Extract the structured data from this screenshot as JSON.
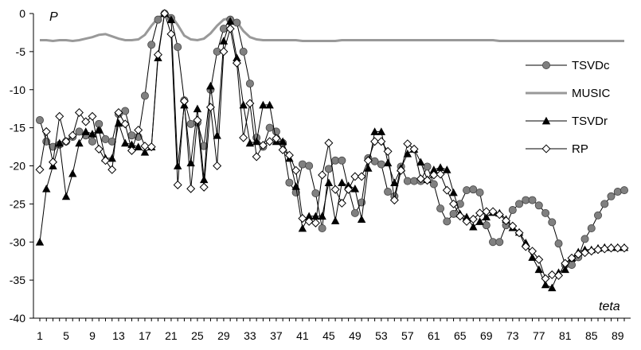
{
  "chart_data": {
    "type": "line",
    "title": "",
    "ylabel": "P",
    "xlabel": "teta",
    "ylim": [
      -40,
      0
    ],
    "yticks": [
      0,
      -5,
      -10,
      -15,
      -20,
      -25,
      -30,
      -35,
      -40
    ],
    "xlim": [
      1,
      90
    ],
    "xticks": [
      1,
      5,
      9,
      13,
      17,
      21,
      25,
      29,
      33,
      37,
      41,
      45,
      49,
      53,
      57,
      61,
      65,
      69,
      73,
      77,
      81,
      85,
      89
    ],
    "grid": false,
    "legend_position": "right",
    "x": [
      1,
      2,
      3,
      4,
      5,
      6,
      7,
      8,
      9,
      10,
      11,
      12,
      13,
      14,
      15,
      16,
      17,
      18,
      19,
      20,
      21,
      22,
      23,
      24,
      25,
      26,
      27,
      28,
      29,
      30,
      31,
      32,
      33,
      34,
      35,
      36,
      37,
      38,
      39,
      40,
      41,
      42,
      43,
      44,
      45,
      46,
      47,
      48,
      49,
      50,
      51,
      52,
      53,
      54,
      55,
      56,
      57,
      58,
      59,
      60,
      61,
      62,
      63,
      64,
      65,
      66,
      67,
      68,
      69,
      70,
      71,
      72,
      73,
      74,
      75,
      76,
      77,
      78,
      79,
      80,
      81,
      82,
      83,
      84,
      85,
      86,
      87,
      88,
      89,
      90
    ],
    "series": [
      {
        "name": "TSVDc",
        "color": "#808080",
        "marker": "circle",
        "values": [
          -14,
          -16.8,
          -17.5,
          -17.2,
          -16.8,
          -16.2,
          -15.5,
          -16,
          -16.8,
          -14.5,
          -16.5,
          -16.8,
          -13.2,
          -12.8,
          -16,
          -16.2,
          -10.8,
          -4.1,
          -0.8,
          0,
          -0.6,
          -4.4,
          -11.4,
          -14.5,
          -14.3,
          -17.4,
          -10,
          -5,
          -2,
          -0.8,
          -1.2,
          -5,
          -9.2,
          -16.3,
          -17.5,
          -15,
          -15.5,
          -17,
          -22.2,
          -23.5,
          -19.8,
          -20,
          -23.6,
          -28.2,
          -20.4,
          -19.3,
          -19.3,
          -23,
          -26.2,
          -24.8,
          -19,
          -19.4,
          -19.8,
          -23.4,
          -24,
          -20.1,
          -22,
          -22,
          -22,
          -20.1,
          -22.4,
          -25.6,
          -27.3,
          -26.3,
          -25,
          -23.2,
          -23.1,
          -23.5,
          -27.8,
          -30,
          -30,
          -27.8,
          -25.8,
          -25,
          -24.5,
          -24.5,
          -25.2,
          -26.2,
          -27.4,
          -30.2,
          -33,
          -33,
          -32,
          -29.6,
          -28.2,
          -26.5,
          -25,
          -24,
          -23.4,
          -23.2
        ]
      },
      {
        "name": "MUSIC",
        "color": "#999999",
        "marker": "none",
        "values": [
          -3.5,
          -3.5,
          -3.6,
          -3.5,
          -3.5,
          -3.6,
          -3.5,
          -3.3,
          -3.1,
          -2.8,
          -2.7,
          -3,
          -3.3,
          -3.5,
          -3.5,
          -3.4,
          -2.8,
          -1.6,
          -0.6,
          0,
          -0.3,
          -1.5,
          -2.9,
          -3.4,
          -3.5,
          -3.3,
          -2.6,
          -1.6,
          -0.8,
          -0.6,
          -1.1,
          -2.3,
          -3.1,
          -3.4,
          -3.5,
          -3.5,
          -3.5,
          -3.5,
          -3.5,
          -3.5,
          -3.6,
          -3.6,
          -3.6,
          -3.6,
          -3.6,
          -3.6,
          -3.5,
          -3.5,
          -3.5,
          -3.5,
          -3.5,
          -3.5,
          -3.5,
          -3.5,
          -3.5,
          -3.5,
          -3.5,
          -3.5,
          -3.5,
          -3.5,
          -3.5,
          -3.5,
          -3.5,
          -3.5,
          -3.5,
          -3.5,
          -3.5,
          -3.5,
          -3.5,
          -3.5,
          -3.6,
          -3.6,
          -3.6,
          -3.6,
          -3.6,
          -3.6,
          -3.6,
          -3.6,
          -3.6,
          -3.6,
          -3.6,
          -3.6,
          -3.6,
          -3.6,
          -3.6,
          -3.6,
          -3.6,
          -3.6,
          -3.6,
          -3.6
        ]
      },
      {
        "name": "TSVDr",
        "color": "#000000",
        "marker": "triangle",
        "values": [
          -30,
          -23,
          -20,
          -17,
          -24,
          -21,
          -17,
          -15.5,
          -15.8,
          -15.3,
          -19,
          -19,
          -14.4,
          -17,
          -17.2,
          -17.5,
          -18.2,
          -17.5,
          -5.8,
          0,
          -0.8,
          -20,
          -12,
          -19.6,
          -12.5,
          -21.8,
          -9.5,
          -16,
          -3.6,
          -1,
          -5.8,
          -12,
          -17,
          -16.8,
          -12,
          -12,
          -16.8,
          -16.8,
          -19,
          -22.7,
          -28.2,
          -26.6,
          -26.6,
          -26.6,
          -22.2,
          -27.2,
          -22.2,
          -22.6,
          -23,
          -27,
          -20.3,
          -15.5,
          -15.5,
          -19.6,
          -22.2,
          -20.3,
          -18.4,
          -17.8,
          -19.5,
          -21.8,
          -20.5,
          -20.2,
          -20.5,
          -23.5,
          -26.3,
          -26.7,
          -28,
          -27.3,
          -26.7,
          -26.1,
          -26.2,
          -27,
          -28.1,
          -28.7,
          -30.1,
          -32,
          -33.6,
          -35.6,
          -36,
          -34,
          -33.6,
          -32.1,
          -31.3,
          -31,
          -31,
          -30.8,
          -30.7,
          -30.7,
          -30.7,
          -30.7
        ]
      },
      {
        "name": "RP",
        "color": "#000000",
        "marker": "diamond",
        "values": [
          -20.5,
          -15.5,
          -19.5,
          -13.5,
          -16.8,
          -16,
          -13,
          -14.2,
          -13.5,
          -17.8,
          -19.3,
          -20.5,
          -13,
          -14.5,
          -18,
          -15.3,
          -17.4,
          -17.5,
          -5.4,
          0,
          -2.7,
          -22.5,
          -11.5,
          -23,
          -14,
          -22.8,
          -12.3,
          -20,
          -5,
          -2,
          -6.5,
          -16.3,
          -11.8,
          -18.8,
          -17.3,
          -16.8,
          -16.4,
          -17.9,
          -18.6,
          -20.6,
          -26.9,
          -27.3,
          -27.5,
          -21.2,
          -17,
          -23.1,
          -24.9,
          -23.1,
          -21.4,
          -21.4,
          -19.3,
          -16.8,
          -16.8,
          -18.1,
          -24.5,
          -20.6,
          -17.1,
          -17.8,
          -21.7,
          -21.9,
          -21.2,
          -21.1,
          -23.2,
          -25,
          -26.6,
          -27.3,
          -27,
          -26.2,
          -26,
          -26,
          -26.4,
          -27.2,
          -27.9,
          -28.8,
          -30.6,
          -31.2,
          -32.3,
          -34.8,
          -34.3,
          -34.4,
          -32.8,
          -32.1,
          -31.6,
          -31.4,
          -31.2,
          -31,
          -30.9,
          -30.8,
          -30.8,
          -30.8
        ]
      }
    ]
  }
}
